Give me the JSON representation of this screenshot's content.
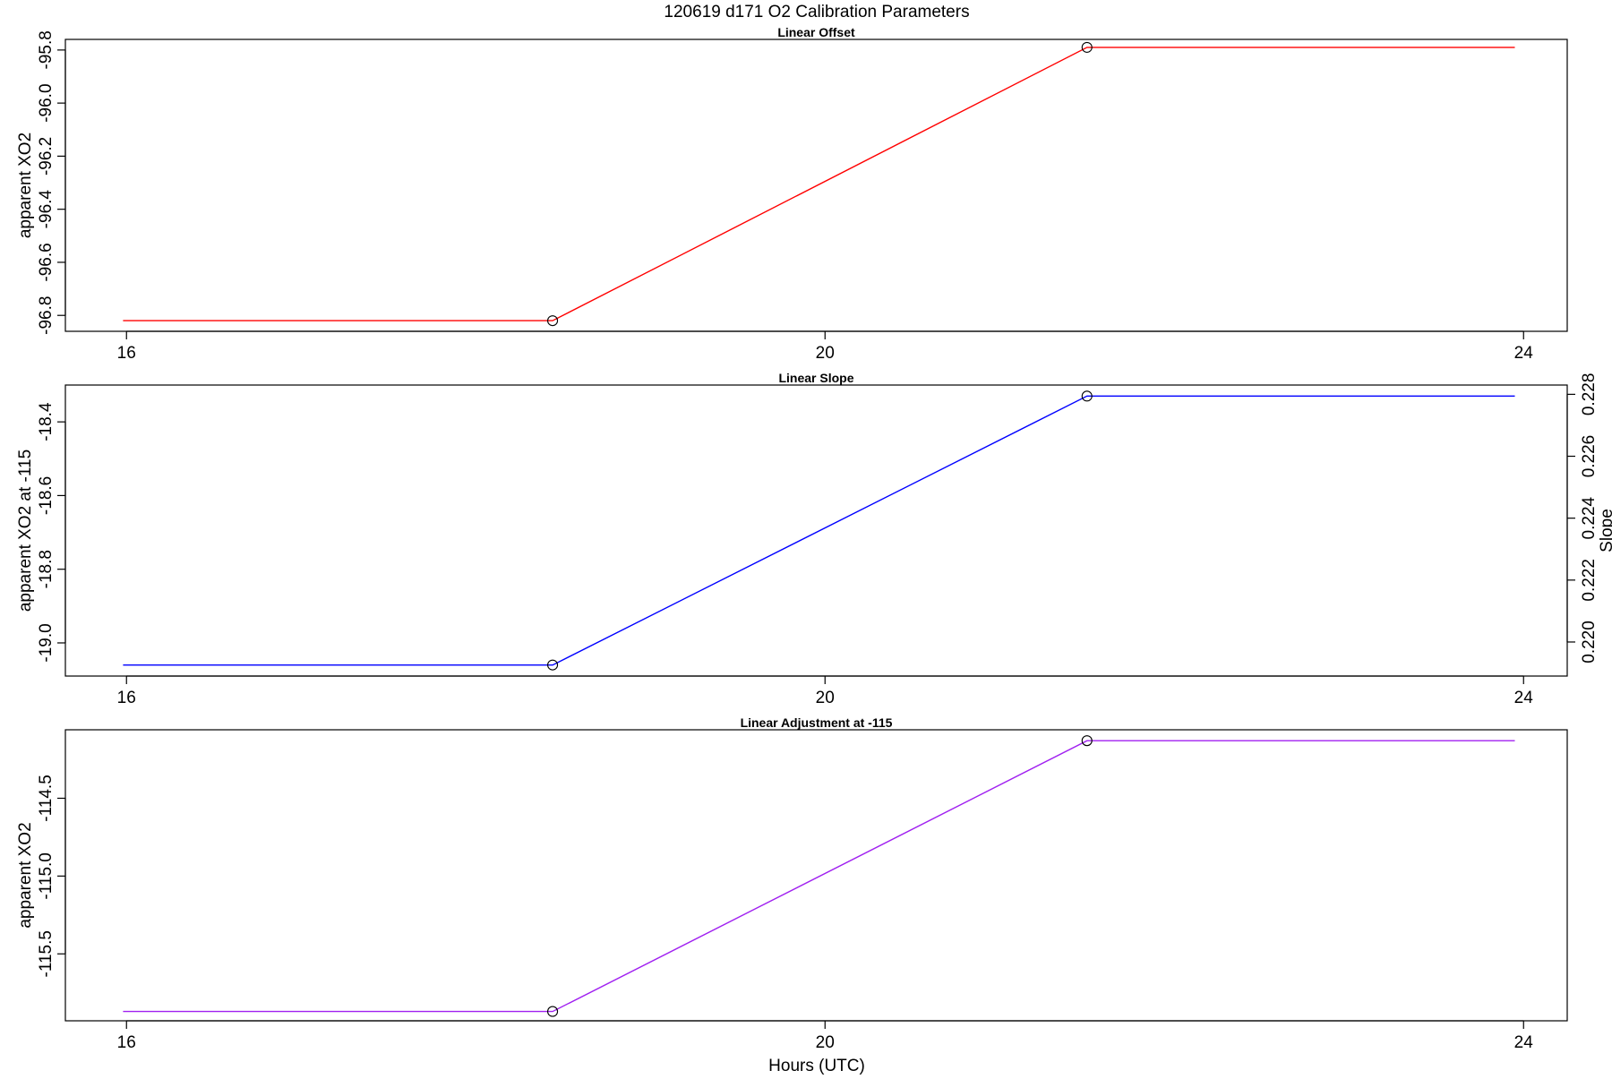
{
  "figure": {
    "title": "120619   d171   O2 Calibration Parameters",
    "xlabel": "Hours (UTC)"
  },
  "chart_data": [
    {
      "type": "line",
      "title": "Linear Offset",
      "xlabel": "",
      "ylabel": "apparent XO2",
      "xlim": [
        15.65,
        24.25
      ],
      "ylim": [
        -96.86,
        -95.76
      ],
      "x_ticks": [
        16,
        20,
        24
      ],
      "x_tick_labels": [
        "16",
        "20",
        "24"
      ],
      "y_ticks": [
        -96.8,
        -96.6,
        -96.4,
        -96.2,
        -96.0,
        -95.8
      ],
      "y_tick_labels": [
        "-96.8",
        "-96.6",
        "-96.4",
        "-96.2",
        "-96.0",
        "-95.8"
      ],
      "grid": false,
      "series": [
        {
          "color": "#ff0000",
          "x": [
            15.98,
            18.44,
            21.5,
            23.95
          ],
          "y": [
            -96.82,
            -96.82,
            -95.79,
            -95.79
          ],
          "markers": [
            1,
            2
          ]
        }
      ]
    },
    {
      "type": "line",
      "title": "Linear Slope",
      "xlabel": "",
      "ylabel": "apparent XO2 at -115",
      "ylabel_right": "Slope",
      "xlim": [
        15.65,
        24.25
      ],
      "ylim": [
        -19.09,
        -18.3
      ],
      "ylim_right": [
        0.2189,
        0.2283
      ],
      "x_ticks": [
        16,
        20,
        24
      ],
      "x_tick_labels": [
        "16",
        "20",
        "24"
      ],
      "y_ticks": [
        -19.0,
        -18.8,
        -18.6,
        -18.4
      ],
      "y_tick_labels": [
        "-19.0",
        "-18.8",
        "-18.6",
        "-18.4"
      ],
      "y_ticks_right": [
        0.22,
        0.222,
        0.224,
        0.226,
        0.228
      ],
      "y_tick_labels_right": [
        "0.220",
        "0.222",
        "0.224",
        "0.226",
        "0.228"
      ],
      "grid": false,
      "series": [
        {
          "color": "#0000ff",
          "x": [
            15.98,
            18.44,
            21.5,
            23.95
          ],
          "y": [
            -19.06,
            -19.06,
            -18.33,
            -18.33
          ],
          "markers": [
            1,
            2
          ]
        }
      ]
    },
    {
      "type": "line",
      "title": "Linear Adjustment at -115",
      "xlabel": "Hours (UTC)",
      "ylabel": "apparent XO2",
      "xlim": [
        15.65,
        24.25
      ],
      "ylim": [
        -115.93,
        -114.06
      ],
      "x_ticks": [
        16,
        20,
        24
      ],
      "x_tick_labels": [
        "16",
        "20",
        "24"
      ],
      "y_ticks": [
        -115.5,
        -115.0,
        -114.5
      ],
      "y_tick_labels": [
        "-115.5",
        "-115.0",
        "-114.5"
      ],
      "grid": false,
      "series": [
        {
          "color": "#a020f0",
          "x": [
            15.98,
            18.44,
            21.5,
            23.95
          ],
          "y": [
            -115.87,
            -115.87,
            -114.13,
            -114.13
          ],
          "markers": [
            1,
            2
          ]
        }
      ]
    }
  ]
}
